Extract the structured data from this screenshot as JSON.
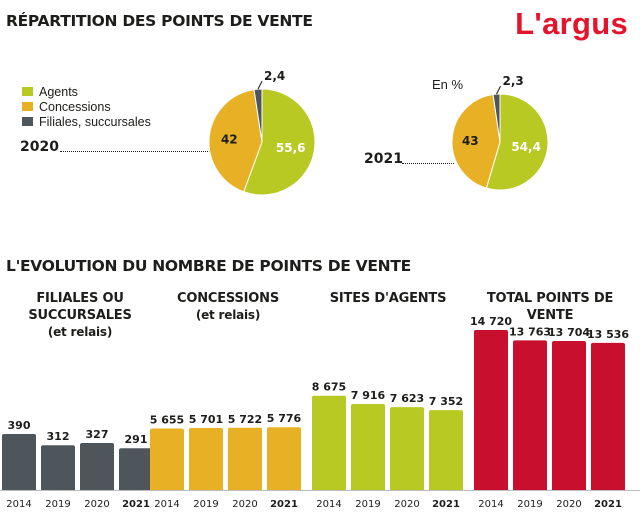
{
  "header": {
    "title_distribution": "RÉPARTITION DES POINTS DE VENTE",
    "logo": "L'argus",
    "title_evolution": "L'EVOLUTION DU NOMBRE DE POINTS DE VENTE"
  },
  "colors": {
    "agents": "#b9c923",
    "concessions": "#e8b125",
    "filiales": "#4f565b",
    "total": "#c8102e"
  },
  "pie_labels": {
    "unit": "En %",
    "year_2020": "2020",
    "year_2021": "2021"
  },
  "group_labels": {
    "filiales": [
      "FILIALES OU",
      "SUCCURSALES",
      "(et relais)"
    ],
    "concessions": [
      "CONCESSIONS",
      "(et relais)"
    ],
    "agents": [
      "SITES D'AGENTS"
    ],
    "total": [
      "TOTAL POINTS DE VENTE"
    ]
  },
  "chart_data": [
    {
      "type": "pie",
      "label": "2020",
      "categories": [
        "Agents",
        "Concessions",
        "Filiales, succursales"
      ],
      "values": [
        55.6,
        42,
        2.4
      ],
      "value_labels": [
        "55,6",
        "42",
        "2,4"
      ]
    },
    {
      "type": "pie",
      "label": "2021",
      "categories": [
        "Agents",
        "Concessions",
        "Filiales, succursales"
      ],
      "values": [
        54.4,
        43,
        2.3
      ],
      "value_labels": [
        "54,4",
        "43",
        "2,3"
      ]
    },
    {
      "type": "bar",
      "groups": [
        {
          "name": "FILIALES OU SUCCURSALES (et relais)",
          "color_key": "filiales",
          "categories": [
            "2014",
            "2019",
            "2020",
            "2021"
          ],
          "values": [
            390,
            312,
            327,
            291
          ],
          "value_labels": [
            "390",
            "312",
            "327",
            "291"
          ]
        },
        {
          "name": "CONCESSIONS (et relais)",
          "color_key": "concessions",
          "categories": [
            "2014",
            "2019",
            "2020",
            "2021"
          ],
          "values": [
            5655,
            5701,
            5722,
            5776
          ],
          "value_labels": [
            "5 655",
            "5 701",
            "5 722",
            "5 776"
          ]
        },
        {
          "name": "SITES D'AGENTS",
          "color_key": "agents",
          "categories": [
            "2014",
            "2019",
            "2020",
            "2021"
          ],
          "values": [
            8675,
            7916,
            7623,
            7352
          ],
          "value_labels": [
            "8 675",
            "7 916",
            "7 623",
            "7 352"
          ]
        },
        {
          "name": "TOTAL POINTS DE VENTE",
          "color_key": "total",
          "categories": [
            "2014",
            "2019",
            "2020",
            "2021"
          ],
          "values": [
            14720,
            13763,
            13704,
            13536
          ],
          "value_labels": [
            "14 720",
            "13 763",
            "13 704",
            "13 536"
          ]
        }
      ],
      "bold_categories": [
        "2021"
      ]
    }
  ]
}
